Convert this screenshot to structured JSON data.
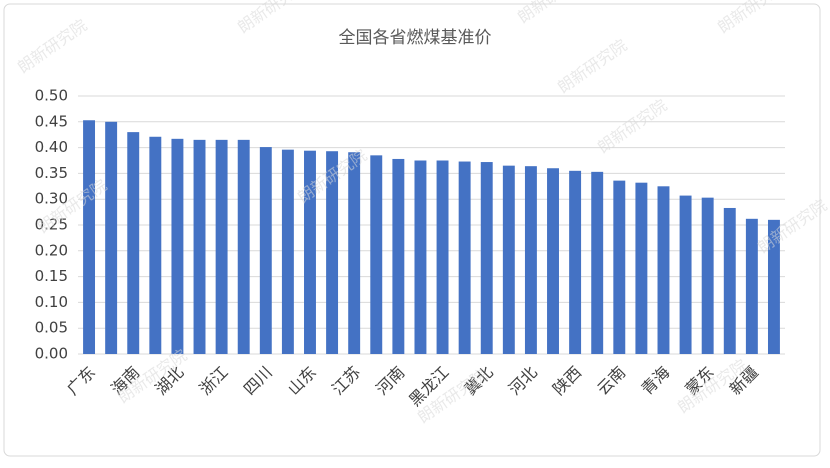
{
  "chart_data": {
    "type": "bar",
    "title": "全国各省燃煤基准价",
    "watermark": "朗新研究院",
    "categories": [
      "广东",
      null,
      "海南",
      null,
      "湖北",
      null,
      "浙江",
      null,
      "四川",
      null,
      "山东",
      null,
      "江苏",
      null,
      "河南",
      null,
      "黑龙江",
      null,
      "冀北",
      null,
      "河北",
      null,
      "陕西",
      null,
      "云南",
      null,
      "青海",
      null,
      "蒙东",
      null,
      "新疆",
      null
    ],
    "values": [
      0.453,
      0.45,
      0.43,
      0.421,
      0.417,
      0.415,
      0.415,
      0.415,
      0.401,
      0.396,
      0.394,
      0.393,
      0.391,
      0.385,
      0.378,
      0.375,
      0.375,
      0.373,
      0.372,
      0.365,
      0.364,
      0.36,
      0.355,
      0.353,
      0.336,
      0.332,
      0.325,
      0.307,
      0.303,
      0.283,
      0.262,
      0.26
    ],
    "color": "#4472c4",
    "ylim": [
      0,
      0.5
    ],
    "yticks": [
      {
        "value": 0,
        "label": "0.00"
      },
      {
        "value": 0.05,
        "label": "0.05"
      },
      {
        "value": 0.1,
        "label": "0.10"
      },
      {
        "value": 0.15,
        "label": "0.15"
      },
      {
        "value": 0.2,
        "label": "0.20"
      },
      {
        "value": 0.25,
        "label": "0.25"
      },
      {
        "value": 0.3,
        "label": "0.30"
      },
      {
        "value": 0.35,
        "label": "0.35"
      },
      {
        "value": 0.4,
        "label": "0.40"
      },
      {
        "value": 0.45,
        "label": "0.45"
      },
      {
        "value": 0.5,
        "label": "0.50"
      }
    ],
    "grid": true
  }
}
